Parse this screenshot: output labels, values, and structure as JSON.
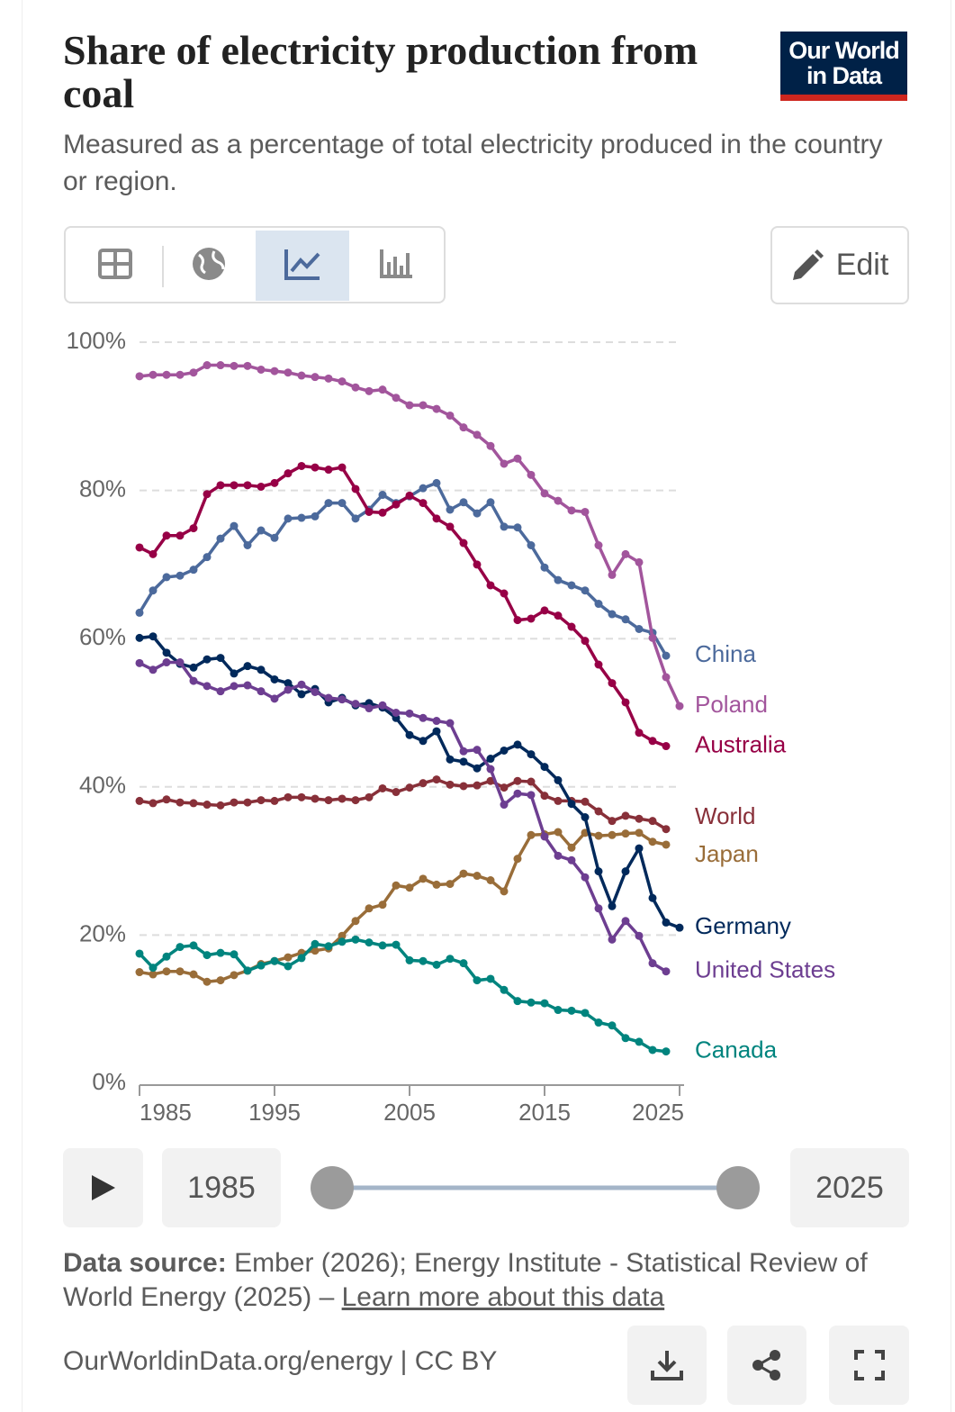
{
  "chart_data": {
    "type": "line",
    "title": "Share of electricity production from coal",
    "subtitle": "Measured as a percentage of total electricity produced in the country or region.",
    "x": [
      1985,
      1986,
      1987,
      1988,
      1989,
      1990,
      1991,
      1992,
      1993,
      1994,
      1995,
      1996,
      1997,
      1998,
      1999,
      2000,
      2001,
      2002,
      2003,
      2004,
      2005,
      2006,
      2007,
      2008,
      2009,
      2010,
      2011,
      2012,
      2013,
      2014,
      2015,
      2016,
      2017,
      2018,
      2019,
      2020,
      2021,
      2022,
      2023,
      2024,
      2025
    ],
    "xlim": [
      1985,
      2025
    ],
    "xticks": [
      1985,
      1995,
      2005,
      2015,
      2025
    ],
    "ylim": [
      0,
      100
    ],
    "yticks": [
      {
        "value": 0,
        "label": "0%"
      },
      {
        "value": 20,
        "label": "20%"
      },
      {
        "value": 40,
        "label": "40%"
      },
      {
        "value": 60,
        "label": "60%"
      },
      {
        "value": 80,
        "label": "80%"
      },
      {
        "value": 100,
        "label": "100%"
      }
    ],
    "grid": true,
    "series": [
      {
        "name": "China",
        "color": "#4c6a9c",
        "values": [
          63.5,
          66.5,
          68.3,
          68.5,
          69.3,
          71,
          73.5,
          75.2,
          72.6,
          74.6,
          73.6,
          76.2,
          76.3,
          76.5,
          78.3,
          78.3,
          76.2,
          77.4,
          79.4,
          78.3,
          79.2,
          80.3,
          81,
          77.4,
          78.4,
          76.9,
          78.4,
          75.1,
          75,
          72.6,
          69.6,
          67.9,
          67.2,
          66.5,
          64.7,
          63.3,
          62.6,
          61.3,
          60.8,
          57.7,
          null
        ]
      },
      {
        "name": "Poland",
        "color": "#a2559c",
        "values": [
          95.4,
          95.6,
          95.6,
          95.6,
          95.9,
          96.9,
          96.9,
          96.8,
          96.8,
          96.3,
          96.1,
          95.9,
          95.5,
          95.3,
          95.1,
          94.7,
          93.9,
          93.4,
          93.6,
          92.5,
          91.5,
          91.5,
          91,
          90.1,
          88.5,
          87.5,
          86,
          83.6,
          84.3,
          82.1,
          79.6,
          78.6,
          77.3,
          77.1,
          72.6,
          68.6,
          71.4,
          70.3,
          60.1,
          54.8,
          50.9
        ]
      },
      {
        "name": "Australia",
        "color": "#970046",
        "values": [
          72.3,
          71.4,
          73.9,
          73.9,
          74.9,
          79.5,
          80.7,
          80.7,
          80.7,
          80.5,
          81,
          82.3,
          83.3,
          83.1,
          82.8,
          83.1,
          80.2,
          77.1,
          77,
          78.1,
          79.3,
          78.3,
          76.2,
          75.1,
          72.9,
          70,
          67.2,
          66.1,
          62.5,
          62.7,
          63.8,
          63.1,
          61.6,
          59.7,
          56.5,
          54,
          51.4,
          47.3,
          46.2,
          45.5,
          null
        ]
      },
      {
        "name": "World",
        "color": "#883039",
        "values": [
          38.1,
          37.8,
          38.3,
          37.9,
          37.8,
          37.6,
          37.5,
          37.9,
          37.9,
          38.2,
          38.1,
          38.6,
          38.6,
          38.4,
          38.2,
          38.4,
          38.2,
          38.6,
          39.8,
          39.3,
          39.9,
          40.5,
          41,
          40.3,
          40.1,
          40.2,
          40.8,
          39.9,
          40.8,
          40.7,
          38.8,
          38.1,
          38.1,
          38,
          36.7,
          35.4,
          36.1,
          35.7,
          35.4,
          34.3,
          null
        ]
      },
      {
        "name": "Japan",
        "color": "#996d39",
        "values": [
          15,
          14.7,
          15.1,
          15.1,
          14.7,
          13.7,
          13.9,
          14.6,
          15.2,
          16.1,
          16.5,
          17,
          17.6,
          17.9,
          18.2,
          19.9,
          21.9,
          23.6,
          24.1,
          26.7,
          26.4,
          27.6,
          26.8,
          26.9,
          28.3,
          28,
          27.4,
          25.9,
          30.3,
          33.5,
          33.6,
          33.9,
          31.8,
          33.8,
          33.4,
          33.5,
          33.7,
          33.8,
          32.6,
          32.2,
          null
        ]
      },
      {
        "name": "Germany",
        "color": "#00295b",
        "values": [
          60.1,
          60.3,
          58.1,
          56.6,
          56.1,
          57.2,
          57.4,
          55.3,
          56.3,
          55.8,
          54.5,
          54,
          52.5,
          53.2,
          51.4,
          52,
          51,
          51.3,
          50.7,
          49.3,
          47,
          46.2,
          47.5,
          43.7,
          43.4,
          42.5,
          43.8,
          44.9,
          45.7,
          44.4,
          42.7,
          40.9,
          37.7,
          35.9,
          28.6,
          23.9,
          28.6,
          31.7,
          25,
          21.7,
          21
        ]
      },
      {
        "name": "United States",
        "color": "#6d3e91",
        "values": [
          56.7,
          55.8,
          56.8,
          56.8,
          54.3,
          53.6,
          52.9,
          53.6,
          53.7,
          52.9,
          51.9,
          53.1,
          53.8,
          52.8,
          52,
          51.8,
          51.2,
          50.6,
          51,
          50,
          49.9,
          49.3,
          48.9,
          48.6,
          44.8,
          45,
          42.4,
          37.6,
          39.1,
          38.9,
          33.3,
          30.7,
          30.1,
          27.8,
          23.6,
          19.4,
          21.9,
          19.9,
          16.2,
          15.1,
          null
        ]
      },
      {
        "name": "Canada",
        "color": "#00847e",
        "values": [
          17.5,
          15.6,
          17.1,
          18.4,
          18.6,
          17.3,
          17.6,
          17.4,
          15.2,
          15.9,
          16.5,
          15.8,
          16.9,
          18.8,
          18.5,
          19.1,
          19.4,
          19,
          18.6,
          18.7,
          16.6,
          16.5,
          16,
          16.8,
          16.2,
          13.9,
          14.1,
          12.6,
          11.1,
          10.9,
          10.8,
          9.9,
          9.8,
          9.5,
          8.2,
          7.8,
          6.1,
          5.6,
          4.5,
          4.3,
          null
        ]
      }
    ]
  },
  "logo": [
    "Our World",
    "in Data"
  ],
  "edit": "Edit",
  "timeline": {
    "start": "1985",
    "end": "2025"
  },
  "source": {
    "label": "Data source:",
    "text": "Ember (2026); Energy Institute - Statistical Review of World Energy (2025) –",
    "link": "Learn more about this data"
  },
  "footer": "OurWorldinData.org/energy | CC BY"
}
